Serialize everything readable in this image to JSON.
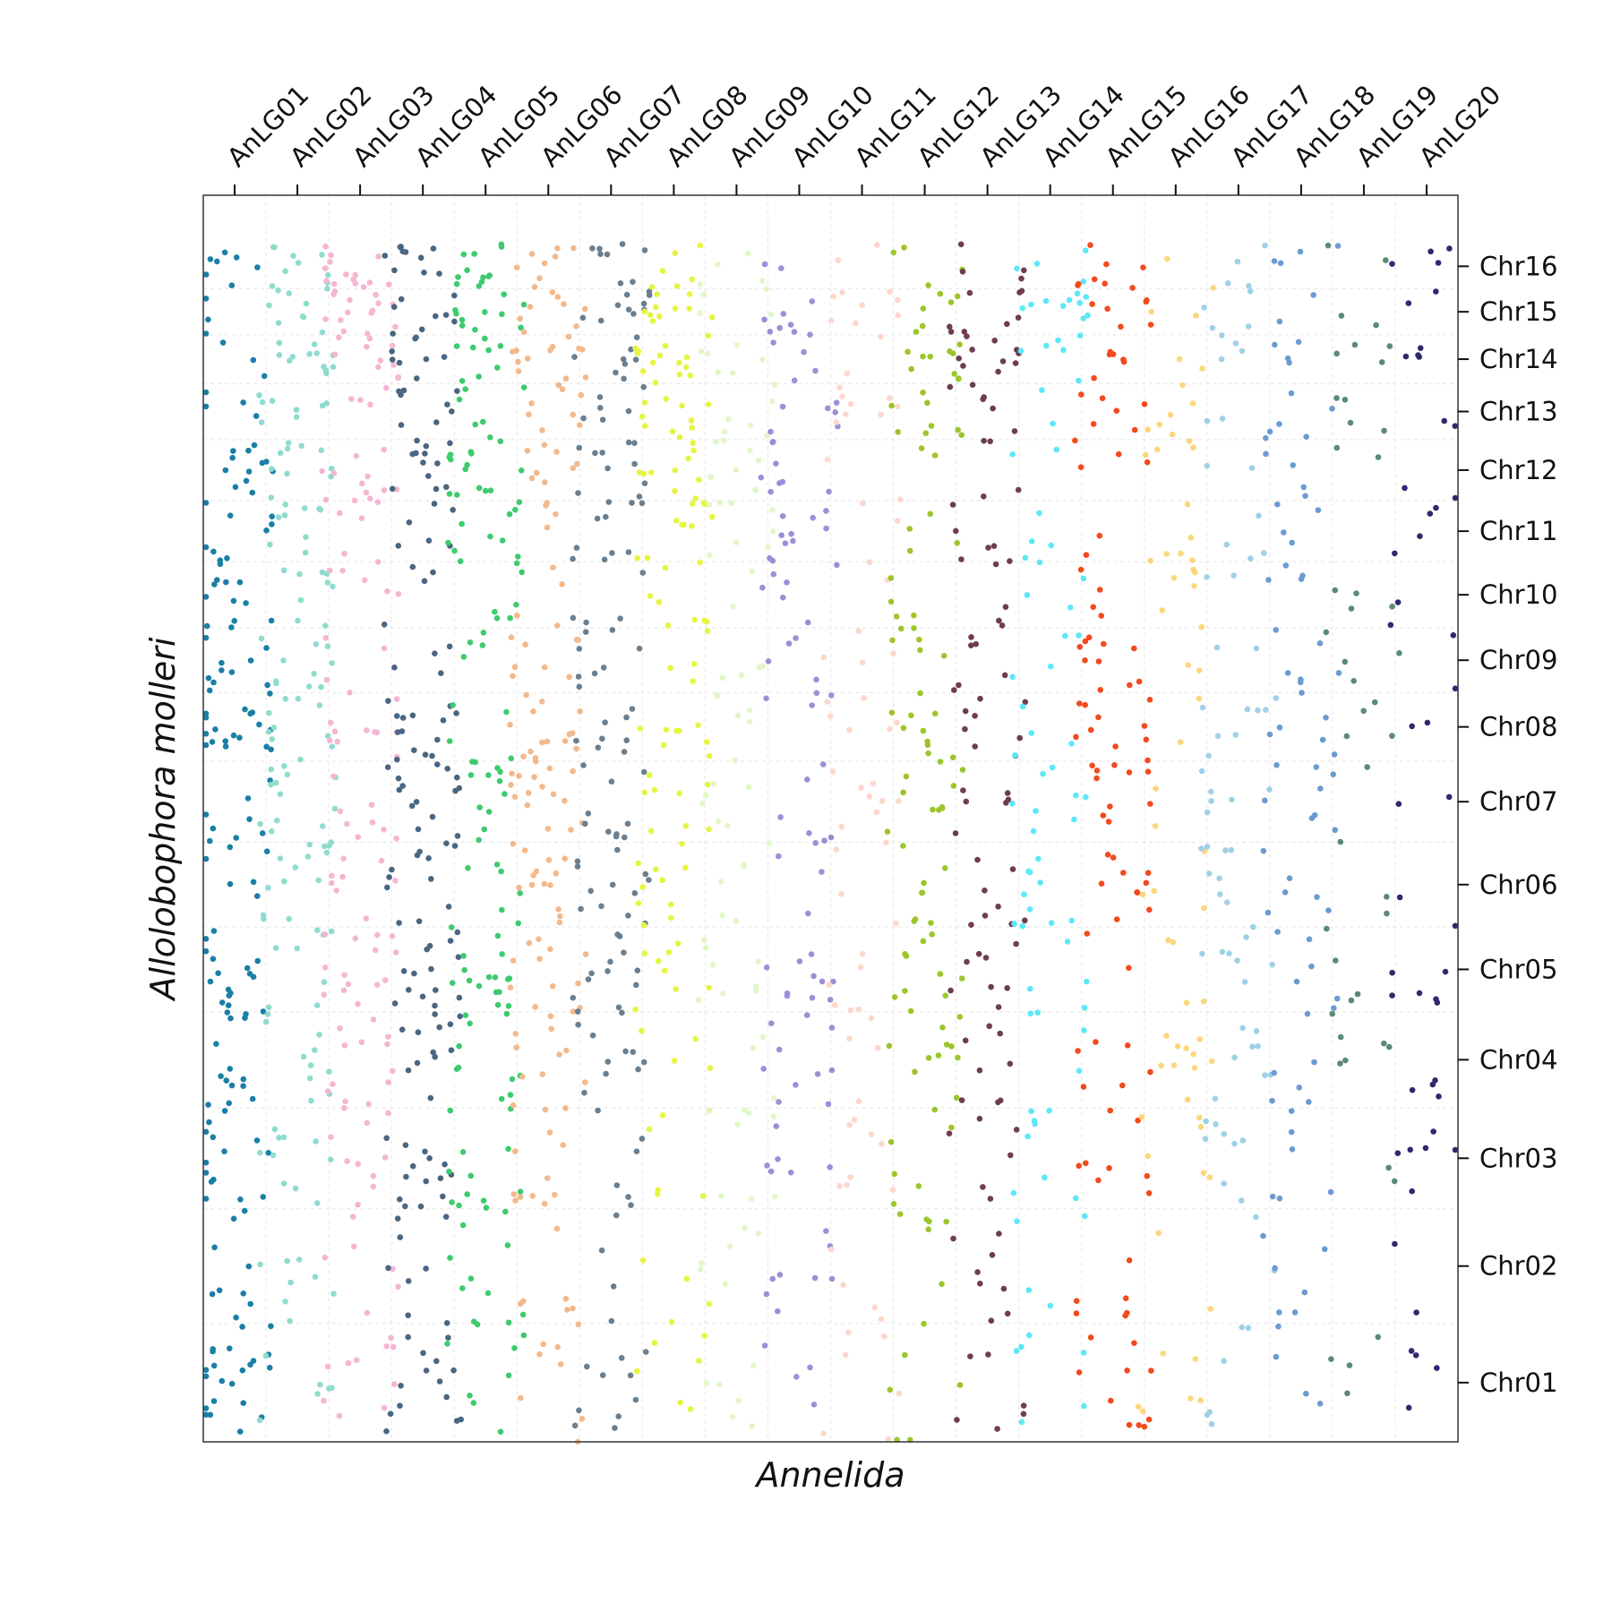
{
  "chart_data": {
    "type": "scatter",
    "xlabel": "Annelida",
    "ylabel": "Allolobophora molleri",
    "grid": true,
    "x_categories": [
      {
        "name": "AnLG01",
        "color": "#1a7fa6"
      },
      {
        "name": "AnLG02",
        "color": "#8fdccf"
      },
      {
        "name": "AnLG03",
        "color": "#f5b6d2"
      },
      {
        "name": "AnLG04",
        "color": "#4a6680"
      },
      {
        "name": "AnLG05",
        "color": "#3ecb6f"
      },
      {
        "name": "AnLG06",
        "color": "#f2b98c"
      },
      {
        "name": "AnLG07",
        "color": "#6a7f8f"
      },
      {
        "name": "AnLG08",
        "color": "#e6f542"
      },
      {
        "name": "AnLG09",
        "color": "#e2f7c9"
      },
      {
        "name": "AnLG10",
        "color": "#9d8fd6"
      },
      {
        "name": "AnLG11",
        "color": "#fcd7cc"
      },
      {
        "name": "AnLG12",
        "color": "#9cc62b"
      },
      {
        "name": "AnLG13",
        "color": "#6e3d52"
      },
      {
        "name": "AnLG14",
        "color": "#5ce8f7"
      },
      {
        "name": "AnLG15",
        "color": "#f24a1d"
      },
      {
        "name": "AnLG16",
        "color": "#fbd77c"
      },
      {
        "name": "AnLG17",
        "color": "#9fd1e6"
      },
      {
        "name": "AnLG18",
        "color": "#6b9bd1"
      },
      {
        "name": "AnLG19",
        "color": "#5a8a78"
      },
      {
        "name": "AnLG20",
        "color": "#2d2a6e"
      }
    ],
    "y_categories": [
      "Chr01",
      "Chr02",
      "Chr03",
      "Chr04",
      "Chr05",
      "Chr06",
      "Chr07",
      "Chr08",
      "Chr09",
      "Chr10",
      "Chr11",
      "Chr12",
      "Chr13",
      "Chr14",
      "Chr15",
      "Chr16"
    ],
    "y_fractions": [
      0.095,
      0.092,
      0.081,
      0.077,
      0.068,
      0.068,
      0.065,
      0.055,
      0.052,
      0.053,
      0.049,
      0.049,
      0.045,
      0.039,
      0.037,
      0.036
    ],
    "x_fractions": [
      0.05,
      0.05,
      0.05,
      0.05,
      0.05,
      0.05,
      0.05,
      0.05,
      0.05,
      0.05,
      0.05,
      0.05,
      0.05,
      0.05,
      0.05,
      0.05,
      0.05,
      0.05,
      0.05,
      0.05
    ],
    "density": [
      [
        22,
        9,
        14,
        14,
        16,
        6,
        8,
        18,
        10,
        12,
        9,
        12,
        4,
        3,
        3,
        7
      ],
      [
        6,
        8,
        10,
        10,
        8,
        14,
        12,
        10,
        10,
        9,
        9,
        10,
        8,
        12,
        8,
        10
      ],
      [
        10,
        6,
        10,
        12,
        14,
        8,
        8,
        10,
        4,
        6,
        4,
        12,
        4,
        10,
        14,
        14
      ],
      [
        14,
        8,
        14,
        12,
        14,
        12,
        14,
        14,
        4,
        4,
        6,
        12,
        8,
        8,
        8,
        10
      ],
      [
        8,
        10,
        12,
        10,
        16,
        6,
        12,
        4,
        4,
        6,
        10,
        14,
        6,
        8,
        10,
        12
      ],
      [
        8,
        6,
        12,
        10,
        12,
        14,
        16,
        14,
        8,
        4,
        4,
        8,
        8,
        12,
        8,
        8
      ],
      [
        10,
        4,
        6,
        10,
        12,
        12,
        10,
        8,
        8,
        4,
        10,
        10,
        6,
        8,
        10,
        8
      ],
      [
        6,
        4,
        6,
        4,
        8,
        10,
        8,
        8,
        4,
        8,
        10,
        10,
        10,
        14,
        10,
        6
      ],
      [
        6,
        6,
        8,
        4,
        8,
        6,
        6,
        6,
        4,
        2,
        8,
        8,
        6,
        6,
        4,
        4
      ],
      [
        4,
        8,
        6,
        10,
        10,
        4,
        6,
        4,
        4,
        6,
        10,
        8,
        6,
        4,
        8,
        2
      ],
      [
        6,
        4,
        8,
        4,
        6,
        4,
        8,
        6,
        4,
        2,
        2,
        2,
        8,
        2,
        8,
        2
      ],
      [
        6,
        6,
        6,
        10,
        10,
        8,
        10,
        10,
        6,
        4,
        4,
        2,
        8,
        10,
        6,
        4
      ],
      [
        6,
        8,
        6,
        8,
        8,
        8,
        6,
        8,
        6,
        4,
        6,
        4,
        6,
        10,
        8,
        4
      ],
      [
        6,
        4,
        8,
        4,
        4,
        10,
        8,
        4,
        4,
        4,
        4,
        2,
        2,
        6,
        10,
        4
      ],
      [
        10,
        6,
        8,
        6,
        2,
        10,
        10,
        10,
        10,
        4,
        2,
        4,
        6,
        6,
        6,
        8
      ],
      [
        6,
        2,
        6,
        10,
        4,
        4,
        2,
        2,
        2,
        6,
        6,
        4,
        6,
        2,
        2,
        2
      ],
      [
        6,
        2,
        8,
        8,
        8,
        8,
        6,
        8,
        2,
        2,
        4,
        2,
        2,
        4,
        4,
        4
      ],
      [
        4,
        6,
        6,
        6,
        6,
        6,
        8,
        6,
        6,
        4,
        4,
        4,
        6,
        4,
        2,
        4
      ],
      [
        4,
        0,
        2,
        6,
        4,
        2,
        2,
        4,
        4,
        4,
        0,
        2,
        4,
        4,
        2,
        2
      ],
      [
        4,
        2,
        6,
        4,
        6,
        2,
        2,
        2,
        2,
        2,
        4,
        2,
        2,
        4,
        2,
        4
      ]
    ]
  }
}
